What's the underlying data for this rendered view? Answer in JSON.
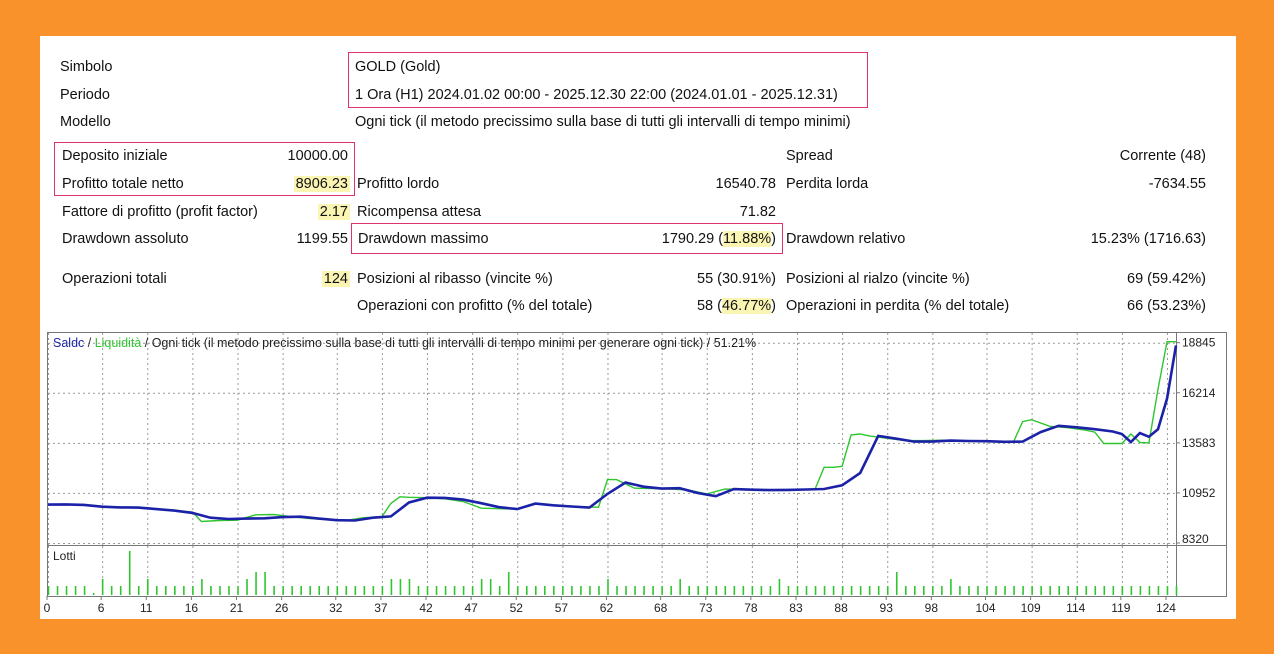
{
  "report": {
    "symbol_label": "Simbolo",
    "symbol_value": "GOLD (Gold)",
    "period_label": "Periodo",
    "period_value": "1 Ora (H1) 2024.01.02 00:00 - 2025.12.30 22:00 (2024.01.01 - 2025.12.31)",
    "model_label": "Modello",
    "model_value": "Ogni tick (il metodo precissimo sulla base di tutti gli intervalli di tempo minimi)",
    "deposit_label": "Deposito iniziale",
    "deposit_value": "10000.00",
    "spread_label": "Spread",
    "spread_value": "Corrente (48)",
    "net_profit_label": "Profitto totale netto",
    "net_profit_value": "8906.23",
    "gross_profit_label": "Profitto lordo",
    "gross_profit_value": "16540.78",
    "gross_loss_label": "Perdita lorda",
    "gross_loss_value": "-7634.55",
    "profit_factor_label": "Fattore di profitto (profit factor)",
    "profit_factor_value": "2.17",
    "expected_payoff_label": "Ricompensa attesa",
    "expected_payoff_value": "71.82",
    "abs_dd_label": "Drawdown assoluto",
    "abs_dd_value": "1199.55",
    "max_dd_label": "Drawdown massimo",
    "max_dd_value_a": "1790.29 (",
    "max_dd_value_b": "11.88%",
    "max_dd_value_c": ")",
    "rel_dd_label": "Drawdown relativo",
    "rel_dd_value": "15.23% (1716.63)",
    "total_trades_label": "Operazioni totali",
    "total_trades_value": "124",
    "short_label": "Posizioni al ribasso (vincite %)",
    "short_value": "55 (30.91%)",
    "long_label": "Posizioni al rialzo (vincite %)",
    "long_value": "69 (59.42%)",
    "profit_trades_label": "Operazioni con profitto (% del totale)",
    "profit_trades_value_a": "58 (",
    "profit_trades_value_b": "46.77%",
    "profit_trades_value_c": ")",
    "loss_trades_label": "Operazioni in perdita (% del totale)",
    "loss_trades_value": "66 (53.23%)"
  },
  "chart_data": {
    "type": "line",
    "legend": {
      "balance": "Saldc",
      "sep1": " / ",
      "equity": "Liquidità",
      "rest": " / Ogni tick (il metodo precissimo sulla base di tutti gli intervalli di tempo minimi per generare ogni tick) / 51.21%"
    },
    "colors": {
      "balance": "#1b22a8",
      "equity": "#2fc52f",
      "lots": "#2fc52f"
    },
    "ylim": [
      8320,
      19250
    ],
    "yticks": [
      8320,
      10952,
      13583,
      16214,
      18845
    ],
    "xlim": [
      0,
      125
    ],
    "xticks": [
      0,
      6,
      11,
      16,
      21,
      26,
      32,
      37,
      42,
      47,
      52,
      57,
      62,
      68,
      73,
      78,
      83,
      88,
      93,
      98,
      104,
      109,
      114,
      119,
      124
    ],
    "series": [
      {
        "name": "Saldc",
        "x": [
          0,
          2,
          4,
          6,
          8,
          10,
          12,
          14,
          16,
          18,
          20,
          22,
          24,
          26,
          28,
          30,
          32,
          34,
          36,
          38,
          40,
          42,
          44,
          46,
          48,
          50,
          52,
          54,
          56,
          58,
          60,
          62,
          64,
          66,
          68,
          70,
          72,
          74,
          76,
          78,
          80,
          82,
          84,
          86,
          88,
          90,
          92,
          94,
          96,
          98,
          100,
          102,
          104,
          106,
          108,
          110,
          112,
          114,
          116,
          118,
          119,
          120,
          121,
          122,
          123,
          124,
          125
        ],
        "y": [
          10340,
          10350,
          10320,
          10230,
          10190,
          10180,
          10100,
          10020,
          9900,
          9650,
          9580,
          9600,
          9620,
          9680,
          9700,
          9600,
          9520,
          9500,
          9650,
          9720,
          10450,
          10700,
          10690,
          10600,
          10410,
          10200,
          10100,
          10390,
          10300,
          10240,
          10180,
          10900,
          11500,
          11280,
          11180,
          11200,
          10950,
          10780,
          11150,
          11120,
          11100,
          11110,
          11130,
          11160,
          11350,
          12000,
          13950,
          13800,
          13650,
          13650,
          13700,
          13680,
          13670,
          13640,
          13650,
          14150,
          14480,
          14400,
          14300,
          14180,
          14050,
          13620,
          14100,
          13900,
          14300,
          15900,
          18700
        ]
      },
      {
        "name": "Liquidità",
        "x": [
          0,
          2,
          4,
          6,
          8,
          10,
          12,
          14,
          16,
          17,
          19,
          21,
          23,
          25,
          27,
          29,
          31,
          33,
          35,
          37,
          38,
          39,
          40,
          42,
          44,
          46,
          48,
          50,
          52,
          54,
          56,
          58,
          60,
          61,
          62,
          63,
          65,
          67,
          69,
          71,
          73,
          75,
          77,
          79,
          81,
          83,
          85,
          86,
          87,
          88,
          89,
          90,
          91,
          93,
          95,
          97,
          99,
          101,
          103,
          105,
          107,
          108,
          109,
          111,
          113,
          115,
          116,
          117,
          118,
          119,
          120,
          121,
          122,
          123,
          124,
          125
        ],
        "y": [
          10360,
          10350,
          10340,
          10250,
          10200,
          10160,
          10110,
          10040,
          9950,
          9450,
          9500,
          9520,
          9800,
          9820,
          9700,
          9600,
          9550,
          9500,
          9650,
          9700,
          10400,
          10750,
          10720,
          10700,
          10640,
          10500,
          10150,
          10120,
          10100,
          10380,
          10320,
          10260,
          10200,
          10200,
          11650,
          11650,
          11200,
          11180,
          11150,
          11100,
          10900,
          11150,
          11140,
          11100,
          11110,
          11120,
          11140,
          12300,
          12300,
          12350,
          14000,
          14050,
          13950,
          13820,
          13700,
          13700,
          13720,
          13690,
          13660,
          13640,
          13640,
          14700,
          14800,
          14450,
          14380,
          14250,
          14150,
          13550,
          13550,
          13550,
          14050,
          13600,
          13580,
          16400,
          18900,
          18900
        ]
      }
    ],
    "lots_label": "Lotti",
    "lots": [
      1,
      1,
      1,
      1,
      1,
      0,
      2,
      1,
      1,
      1,
      1,
      2,
      1,
      1,
      1,
      1,
      1,
      2,
      1,
      1,
      1,
      1,
      2,
      2,
      2,
      1,
      1,
      1,
      1,
      1,
      1,
      1,
      1,
      1,
      1,
      1,
      1,
      1,
      2,
      2,
      2,
      1,
      1,
      1,
      1,
      1,
      1,
      1,
      2,
      2,
      1,
      2,
      1,
      1,
      1,
      1,
      1,
      1,
      1,
      1,
      1,
      1,
      2,
      1,
      1,
      1,
      1,
      1,
      1,
      1,
      1,
      1,
      1,
      1,
      1,
      1,
      1,
      1,
      1,
      1,
      1,
      2,
      1,
      1,
      1,
      1,
      1,
      1,
      1,
      1,
      1,
      1,
      1,
      1,
      1,
      1,
      1,
      1,
      1,
      1,
      2,
      1,
      1,
      1,
      1,
      1,
      1,
      1,
      1,
      1,
      1,
      1,
      1,
      1,
      1,
      1,
      1,
      1,
      1,
      1,
      1,
      1,
      1,
      1,
      1,
      1
    ],
    "lots_peaks": {
      "9": 6,
      "23": 3,
      "24": 3,
      "51": 3,
      "70": 2,
      "94": 3
    }
  }
}
